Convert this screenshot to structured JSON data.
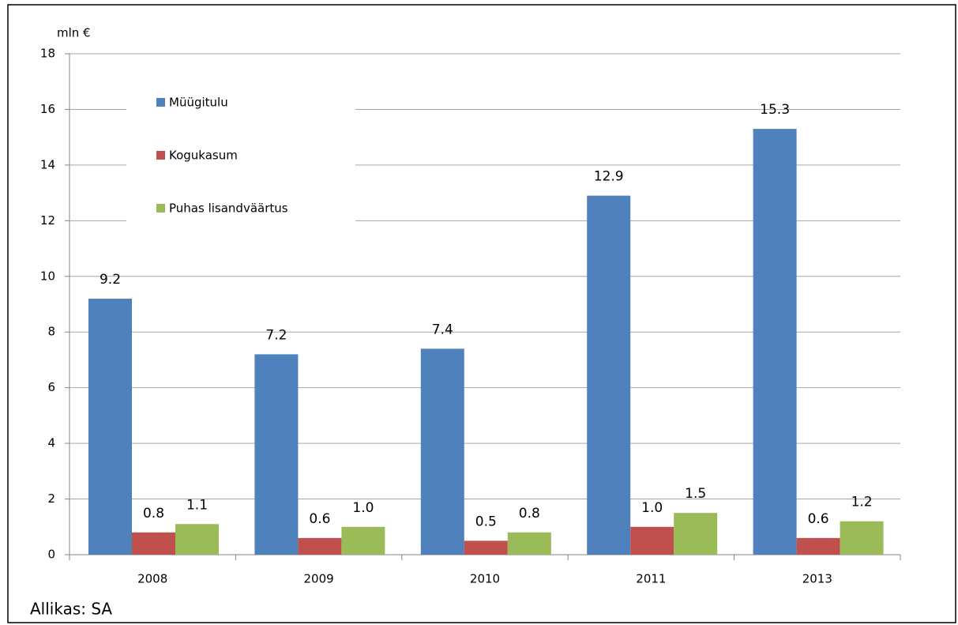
{
  "chart_data": {
    "type": "bar",
    "y_label": "mln €",
    "source": "Allikas: SA",
    "categories": [
      "2008",
      "2009",
      "2010",
      "2011",
      "2013"
    ],
    "series": [
      {
        "name": "Müügitulu",
        "color": "#4f81bd",
        "values": [
          9.2,
          7.2,
          7.4,
          12.9,
          15.3
        ],
        "value_labels": [
          "9.2",
          "7.2",
          "7.4",
          "12.9",
          "15.3"
        ]
      },
      {
        "name": "Kogukasum",
        "color": "#c0504d",
        "values": [
          0.8,
          0.6,
          0.5,
          1.0,
          0.6
        ],
        "value_labels": [
          "0.8",
          "0.6",
          "0.5",
          "1.0",
          "0.6"
        ]
      },
      {
        "name": "Puhas lisandväärtus",
        "color": "#9bbb59",
        "values": [
          1.1,
          1.0,
          0.8,
          1.5,
          1.2
        ],
        "value_labels": [
          "1.1",
          "1.0",
          "0.8",
          "1.5",
          "1.2"
        ]
      }
    ],
    "ylim": [
      0,
      18
    ],
    "yticks": [
      0,
      2,
      4,
      6,
      8,
      10,
      12,
      14,
      16,
      18
    ],
    "grid": true,
    "legend": "upper left"
  }
}
